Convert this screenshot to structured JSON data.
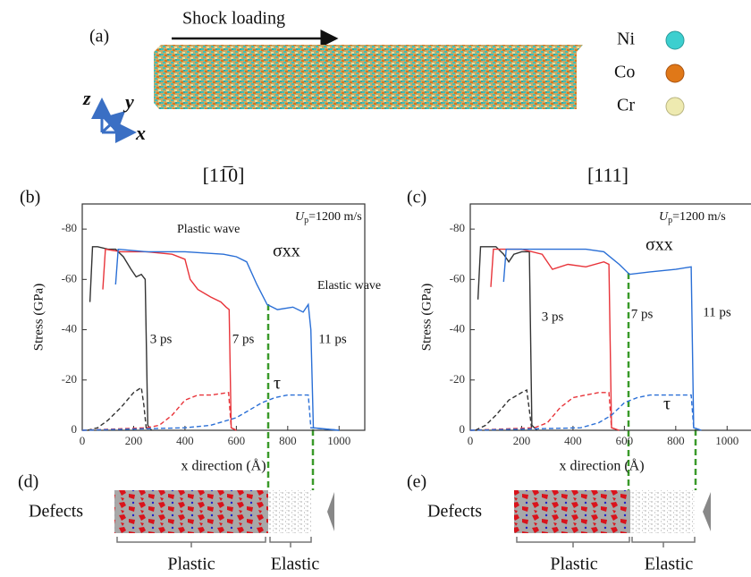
{
  "panel_a": {
    "label": "(a)",
    "arrow_label": "Shock loading",
    "axes": {
      "z": "z",
      "y": "y",
      "x": "x"
    },
    "species": [
      "Ni",
      "Co",
      "Cr"
    ]
  },
  "chart_data": [
    {
      "type": "line",
      "panel_label": "(b)",
      "title": "[11̅0]",
      "x_label": "x direction (Å)",
      "y_label": "Stress (GPa)",
      "xlim": [
        0,
        1100
      ],
      "ylim": [
        0,
        -90
      ],
      "xticks": [
        0,
        200,
        400,
        600,
        800,
        1000
      ],
      "yticks": [
        -80,
        -60,
        -40,
        -20,
        0
      ],
      "up_label": {
        "symbol": "U",
        "sub": "p",
        "rest": "=1200 m/s"
      },
      "annotations": [
        "Plastic wave",
        "σxx",
        "Elastic wave",
        "τ"
      ],
      "series": [
        {
          "name": "3 ps",
          "color": "#333333",
          "x": [
            30,
            40,
            60,
            100,
            130,
            160,
            190,
            210,
            230,
            245,
            255,
            270
          ],
          "values": [
            -51,
            -73,
            -73,
            -72,
            -72,
            -69,
            -64,
            -61,
            -62,
            -60,
            -2,
            0
          ]
        },
        {
          "name": "7 ps",
          "color": "#e8343a",
          "x": [
            80,
            90,
            150,
            250,
            350,
            400,
            420,
            450,
            500,
            540,
            560,
            572,
            580,
            600
          ],
          "values": [
            -56,
            -72,
            -71,
            -71,
            -70,
            -68,
            -60,
            -56,
            -53,
            -51,
            -49,
            -48,
            -1,
            0
          ]
        },
        {
          "name": "11 ps",
          "color": "#2a6fd6",
          "x": [
            130,
            140,
            250,
            400,
            550,
            600,
            640,
            680,
            720,
            760,
            820,
            860,
            880,
            890,
            900,
            1000
          ],
          "values": [
            -58,
            -72,
            -71,
            -71,
            -70,
            -69,
            -67,
            -58,
            -50,
            -48,
            -49,
            -47,
            -50,
            -40,
            -1,
            0
          ]
        },
        {
          "color": "#333333",
          "dashed": true,
          "x": [
            20,
            60,
            100,
            150,
            200,
            230,
            240,
            250
          ],
          "values": [
            0,
            -1,
            -4,
            -9,
            -15,
            -17,
            -10,
            0
          ]
        },
        {
          "color": "#e8343a",
          "dashed": true,
          "x": [
            0,
            250,
            300,
            350,
            400,
            450,
            500,
            570,
            580,
            600
          ],
          "values": [
            0,
            -1,
            -2,
            -6,
            -12,
            -14,
            -14,
            -15,
            -1,
            0
          ]
        },
        {
          "color": "#2a6fd6",
          "dashed": true,
          "x": [
            0,
            400,
            500,
            600,
            700,
            750,
            800,
            880,
            890,
            1000
          ],
          "values": [
            0,
            -1,
            -2,
            -5,
            -11,
            -13,
            -14,
            -14,
            -1,
            0
          ]
        }
      ]
    },
    {
      "type": "line",
      "panel_label": "(c)",
      "title": "[111]",
      "x_label": "x direction (Å)",
      "y_label": "Stress (GPa)",
      "xlim": [
        0,
        1100
      ],
      "ylim": [
        0,
        -90
      ],
      "xticks": [
        0,
        200,
        400,
        600,
        800,
        1000
      ],
      "yticks": [
        -80,
        -60,
        -40,
        -20,
        0
      ],
      "up_label": {
        "symbol": "U",
        "sub": "p",
        "rest": "=1200 m/s"
      },
      "annotations": [
        "σxx",
        "τ"
      ],
      "series": [
        {
          "name": "3 ps",
          "color": "#333333",
          "x": [
            30,
            40,
            100,
            130,
            150,
            170,
            200,
            230,
            240,
            260
          ],
          "values": [
            -52,
            -73,
            -73,
            -70,
            -67,
            -70,
            -71,
            -71,
            -2,
            0
          ]
        },
        {
          "name": "7 ps",
          "color": "#e8343a",
          "x": [
            80,
            90,
            200,
            280,
            320,
            380,
            450,
            520,
            540,
            550,
            580
          ],
          "values": [
            -57,
            -72,
            -72,
            -70,
            -64,
            -66,
            -65,
            -67,
            -66,
            -1,
            0
          ]
        },
        {
          "name": "11 ps",
          "color": "#2a6fd6",
          "x": [
            130,
            140,
            300,
            450,
            520,
            580,
            620,
            700,
            800,
            860,
            870,
            900
          ],
          "values": [
            -59,
            -72,
            -72,
            -72,
            -71,
            -66,
            -62,
            -63,
            -64,
            -65,
            -1,
            0
          ]
        },
        {
          "color": "#333333",
          "dashed": true,
          "x": [
            20,
            60,
            100,
            150,
            200,
            220,
            230,
            240
          ],
          "values": [
            0,
            -2,
            -6,
            -12,
            -15,
            -16,
            -8,
            0
          ]
        },
        {
          "color": "#e8343a",
          "dashed": true,
          "x": [
            0,
            250,
            300,
            350,
            400,
            450,
            500,
            540,
            550,
            580
          ],
          "values": [
            0,
            -1,
            -3,
            -9,
            -13,
            -14,
            -15,
            -15,
            -1,
            0
          ]
        },
        {
          "color": "#2a6fd6",
          "dashed": true,
          "x": [
            0,
            430,
            500,
            550,
            600,
            650,
            700,
            800,
            860,
            870,
            900
          ],
          "values": [
            0,
            -1,
            -3,
            -6,
            -11,
            -13,
            -14,
            -14,
            -14,
            -1,
            0
          ]
        }
      ]
    }
  ],
  "panel_d": {
    "label": "(d)",
    "row_label": "Defects",
    "regions": [
      "Plastic",
      "Elastic"
    ]
  },
  "panel_e": {
    "label": "(e)",
    "row_label": "Defects",
    "regions": [
      "Plastic",
      "Elastic"
    ]
  }
}
